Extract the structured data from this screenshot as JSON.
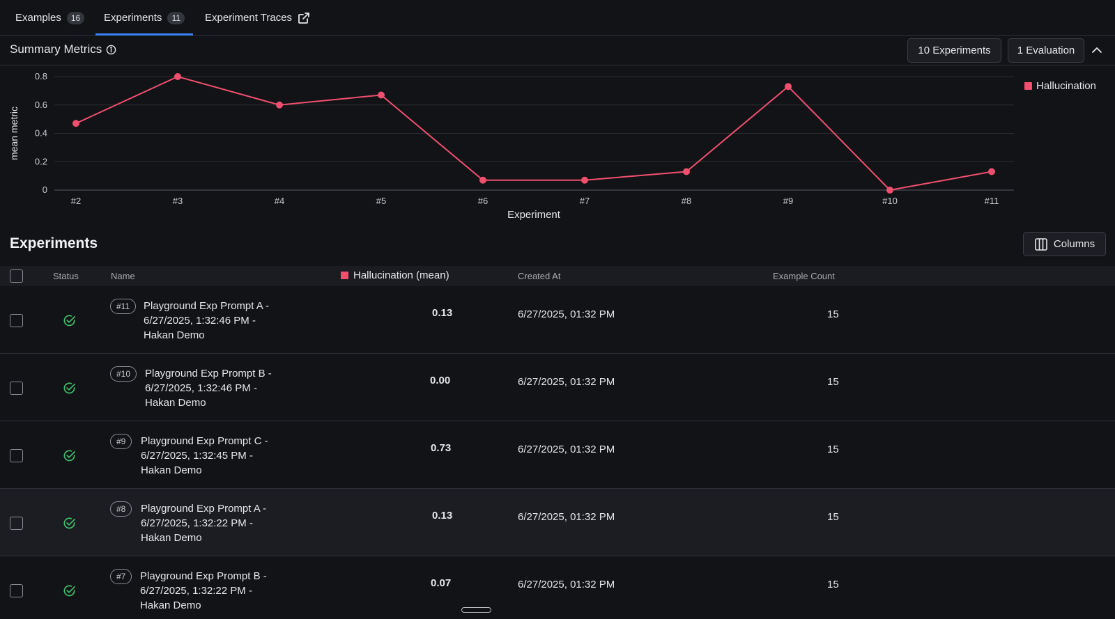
{
  "tabs": [
    {
      "label": "Examples",
      "count": "16"
    },
    {
      "label": "Experiments",
      "count": "11"
    },
    {
      "label": "Experiment Traces"
    }
  ],
  "summary": {
    "title": "Summary Metrics",
    "experiments_button": "10 Experiments",
    "evaluation_button": "1 Evaluation"
  },
  "chart_data": {
    "type": "line",
    "x": [
      "#2",
      "#3",
      "#4",
      "#5",
      "#6",
      "#7",
      "#8",
      "#9",
      "#10",
      "#11"
    ],
    "series": [
      {
        "name": "Hallucination",
        "color": "#f0506e",
        "values": [
          0.47,
          0.8,
          0.6,
          0.67,
          0.07,
          0.07,
          0.13,
          0.73,
          0.0,
          0.13
        ]
      }
    ],
    "yticks": [
      "0",
      "0.2",
      "0.4",
      "0.6",
      "0.8"
    ],
    "ylim": [
      0,
      0.8
    ],
    "xlabel": "Experiment",
    "ylabel": "mean metric",
    "legend": "top-right",
    "grid": true
  },
  "experiments": {
    "title": "Experiments",
    "columns_button": "Columns",
    "headers": {
      "status": "Status",
      "name": "Name",
      "metric": "Hallucination (mean)",
      "created": "Created At",
      "count": "Example Count"
    },
    "rows": [
      {
        "num": "#11",
        "name_line1": "Playground Exp Prompt A -",
        "name_line2": "6/27/2025, 1:32:46 PM -",
        "name_line3": "Hakan Demo",
        "metric": "0.13",
        "created": "6/27/2025, 01:32 PM",
        "count": "15"
      },
      {
        "num": "#10",
        "name_line1": "Playground Exp Prompt B -",
        "name_line2": "6/27/2025, 1:32:46 PM -",
        "name_line3": "Hakan Demo",
        "metric": "0.00",
        "created": "6/27/2025, 01:32 PM",
        "count": "15"
      },
      {
        "num": "#9",
        "name_line1": "Playground Exp Prompt C -",
        "name_line2": "6/27/2025, 1:32:45 PM -",
        "name_line3": "Hakan Demo",
        "metric": "0.73",
        "created": "6/27/2025, 01:32 PM",
        "count": "15"
      },
      {
        "num": "#8",
        "name_line1": "Playground Exp Prompt A -",
        "name_line2": "6/27/2025, 1:32:22 PM -",
        "name_line3": "Hakan Demo",
        "metric": "0.13",
        "created": "6/27/2025, 01:32 PM",
        "count": "15"
      },
      {
        "num": "#7",
        "name_line1": "Playground Exp Prompt B -",
        "name_line2": "6/27/2025, 1:32:22 PM -",
        "name_line3": "Hakan Demo",
        "metric": "0.07",
        "created": "6/27/2025, 01:32 PM",
        "count": "15"
      }
    ]
  }
}
